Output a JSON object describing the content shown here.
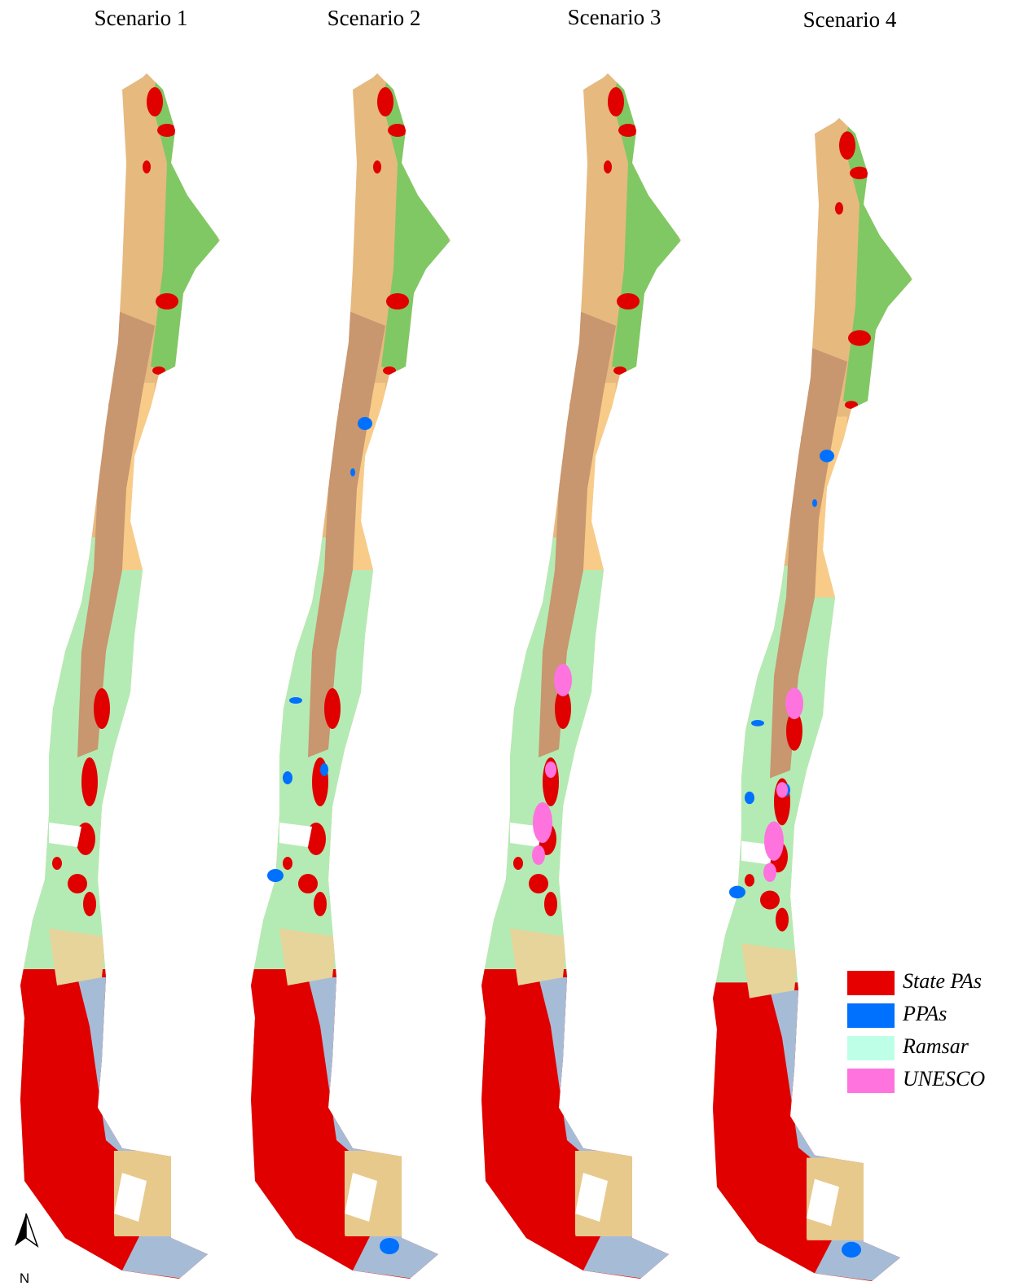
{
  "titles": [
    "Scenario 1",
    "Scenario 2",
    "Scenario 3",
    "Scenario 4"
  ],
  "legend": [
    {
      "label": "State PAs",
      "color": "#e60000"
    },
    {
      "label": "PPAs",
      "color": "#0070ff"
    },
    {
      "label": "Ramsar",
      "color": "#beffe8"
    },
    {
      "label": "UNESCO",
      "color": "#ff73df"
    }
  ],
  "north": "N"
}
